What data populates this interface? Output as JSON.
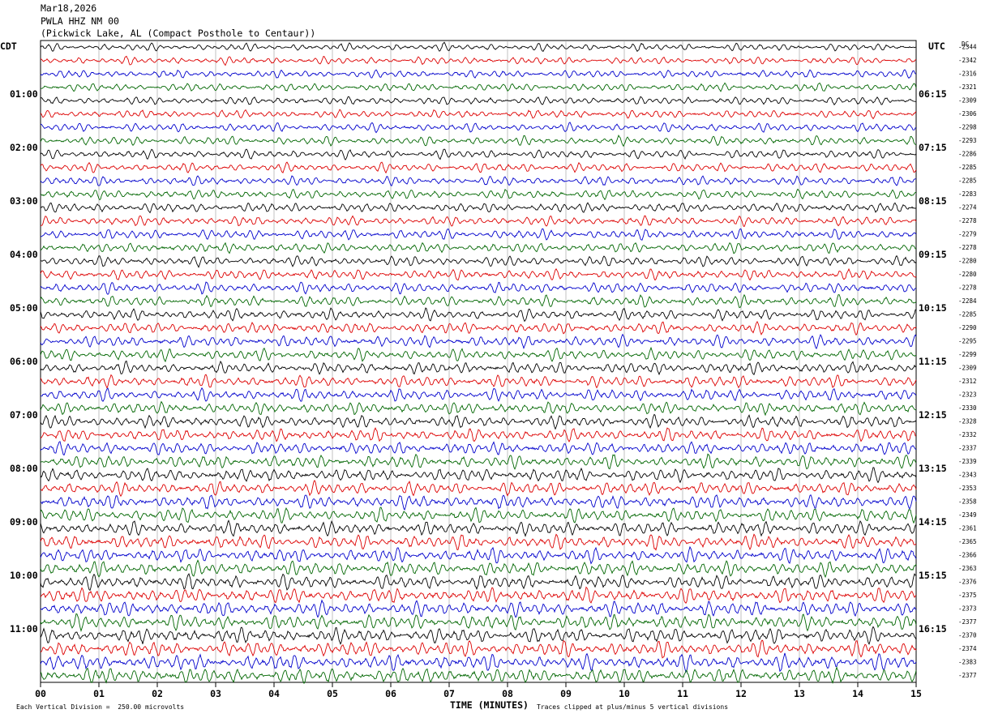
{
  "header": {
    "date": "Mar18,2026",
    "station": "PWLA HHZ NM 00",
    "location": "(Pickwick Lake, AL (Compact Posthole to Centaur))"
  },
  "left_zone": "CDT",
  "right_zone": "UTC",
  "dc_label": "DC",
  "footer": {
    "scale": "Each Vertical Division =  250.00 microvolts",
    "clip": "Traces clipped at plus/minus 5 vertical divisions"
  },
  "colors": {
    "trace": [
      "#000000",
      "#dd0000",
      "#0000cc",
      "#006600"
    ],
    "grid": "#999999"
  },
  "chart_data": {
    "type": "line",
    "title": "",
    "xlabel": "TIME (MINUTES)",
    "ylabel": "",
    "xlim": [
      0,
      15
    ],
    "x_ticks": [
      "00",
      "01",
      "02",
      "03",
      "04",
      "05",
      "06",
      "07",
      "08",
      "09",
      "10",
      "11",
      "12",
      "13",
      "14",
      "15"
    ],
    "rows": 48,
    "minutes_per_row": 15,
    "left_hour_labels": [
      "01:00",
      "02:00",
      "03:00",
      "04:00",
      "05:00",
      "06:00",
      "07:00",
      "08:00",
      "09:00",
      "10:00",
      "11:00"
    ],
    "right_hour_labels": [
      "06:15",
      "07:15",
      "08:15",
      "09:15",
      "10:15",
      "11:15",
      "12:15",
      "13:15",
      "14:15",
      "15:15",
      "16:15"
    ],
    "dc_offsets": [
      -2344,
      -2342,
      -2316,
      -2321,
      -2309,
      -2306,
      -2298,
      -2293,
      -2286,
      -2285,
      -2285,
      -2283,
      -2274,
      -2278,
      -2279,
      -2278,
      -2280,
      -2280,
      -2278,
      -2284,
      -2285,
      -2290,
      -2295,
      -2299,
      -2309,
      -2312,
      -2323,
      -2330,
      -2328,
      -2332,
      -2337,
      -2339,
      -2343,
      -2353,
      -2358,
      -2349,
      -2361,
      -2365,
      -2366,
      -2363,
      -2376,
      -2375,
      -2373,
      -2377,
      -2370,
      -2374,
      -2383,
      -2377
    ]
  }
}
